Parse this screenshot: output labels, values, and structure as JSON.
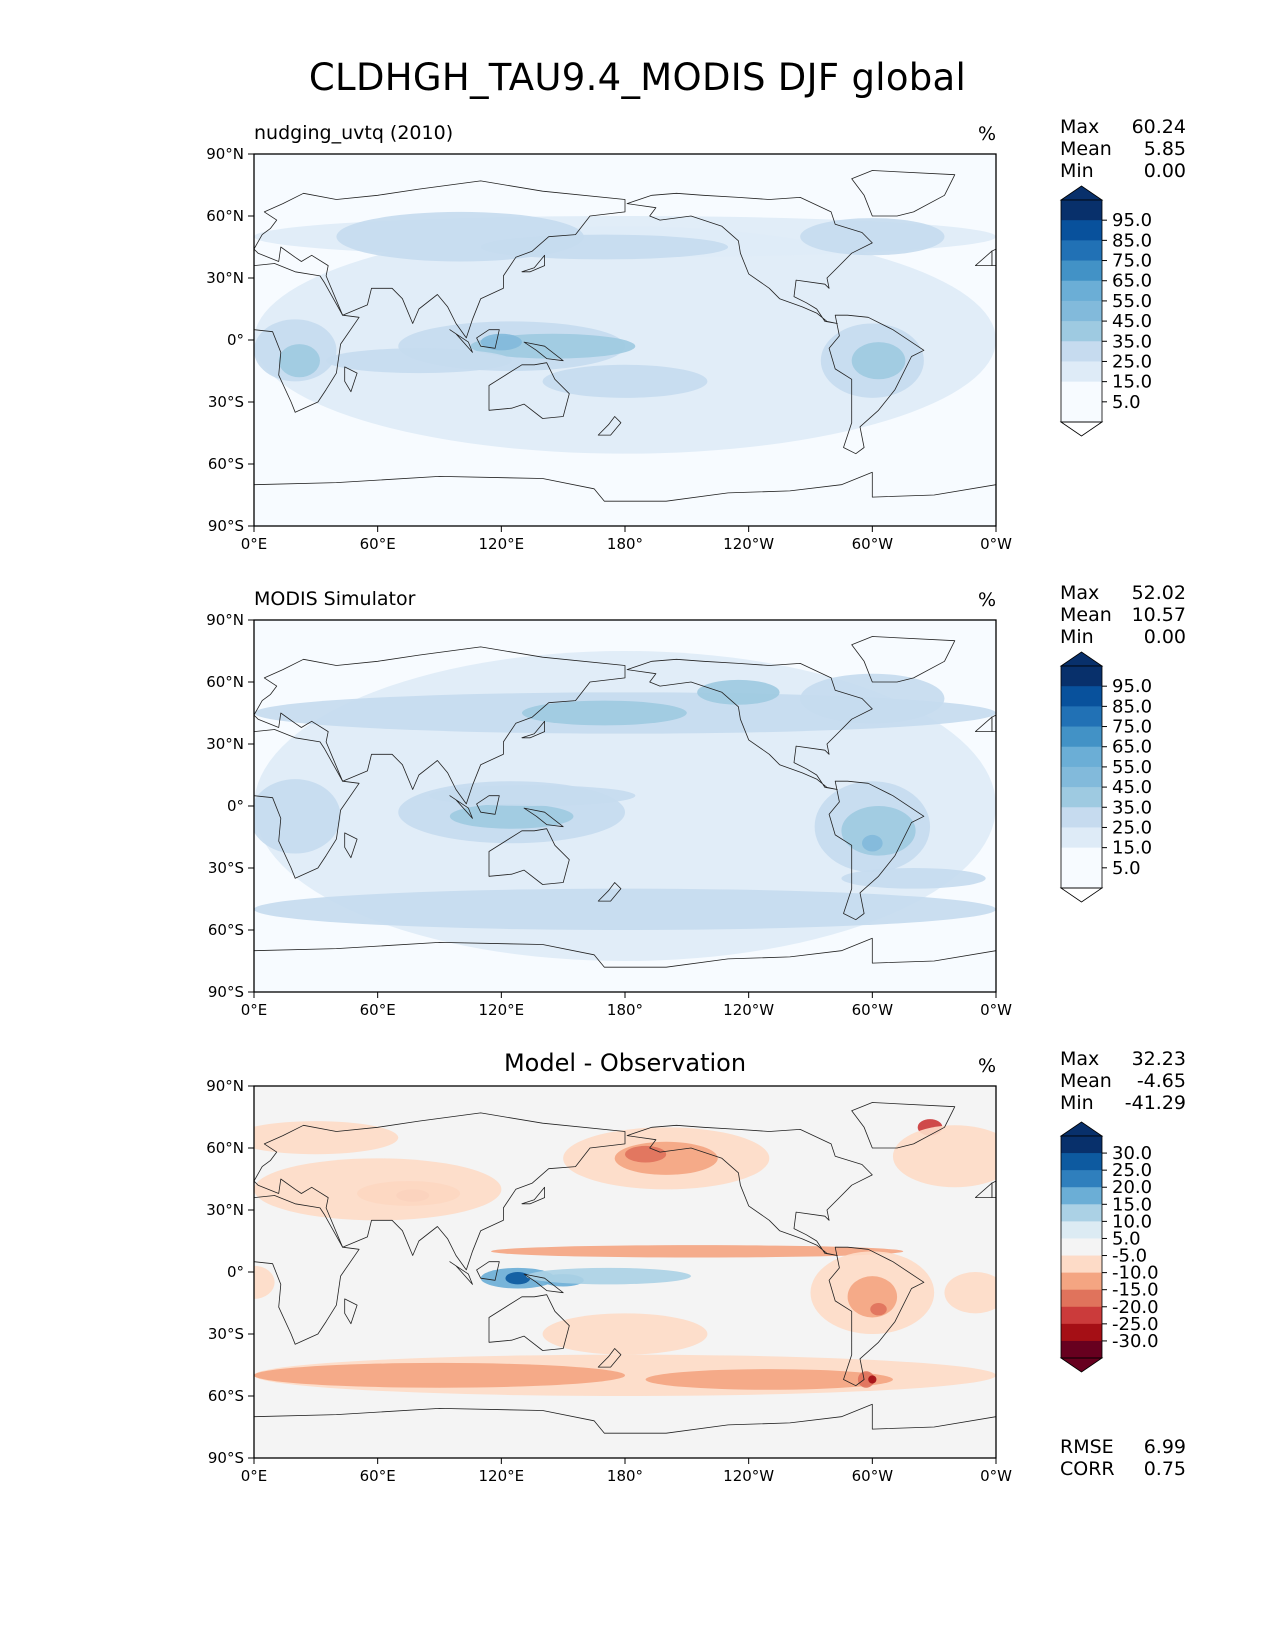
{
  "title": "CLDHGH_TAU9.4_MODIS DJF global",
  "colors": {
    "blues": [
      "#f7fbff",
      "#deebf7",
      "#c6dbef",
      "#9ecae1",
      "#82badb",
      "#6baed6",
      "#4292c6",
      "#2171b5",
      "#08519c",
      "#08306b"
    ],
    "diverging": [
      "#67001f",
      "#a50f15",
      "#cb3b3b",
      "#e0735c",
      "#f4a582",
      "#fddbc7",
      "#f4f4f4",
      "#dcebf3",
      "#abd1e5",
      "#6baed6",
      "#2f7fbd",
      "#0d5aa0",
      "#08306b"
    ],
    "land_outline": "#222222"
  },
  "axes": {
    "lat_ticks": [
      "90°N",
      "60°N",
      "30°N",
      "0°",
      "30°S",
      "60°S",
      "90°S"
    ],
    "lon_ticks": [
      "0°E",
      "60°E",
      "120°E",
      "180°",
      "120°W",
      "60°W",
      "0°W"
    ]
  },
  "chart_data": [
    {
      "type": "heatmap",
      "id": "test",
      "title": "nudging_uvtq (2010)",
      "units": "%",
      "stats": [
        {
          "label": "Max",
          "value": "60.24"
        },
        {
          "label": "Mean",
          "value": "5.85"
        },
        {
          "label": "Min",
          "value": "0.00"
        }
      ],
      "colorbar": {
        "levels": [
          "95.0",
          "85.0",
          "75.0",
          "65.0",
          "55.0",
          "45.0",
          "35.0",
          "25.0",
          "15.0",
          "5.0"
        ],
        "extend": "both"
      },
      "xlim": [
        0,
        360
      ],
      "ylim": [
        -90,
        90
      ]
    },
    {
      "type": "heatmap",
      "id": "reference",
      "title": "MODIS Simulator",
      "units": "%",
      "stats": [
        {
          "label": "Max",
          "value": "52.02"
        },
        {
          "label": "Mean",
          "value": "10.57"
        },
        {
          "label": "Min",
          "value": "0.00"
        }
      ],
      "colorbar": {
        "levels": [
          "95.0",
          "85.0",
          "75.0",
          "65.0",
          "55.0",
          "45.0",
          "35.0",
          "25.0",
          "15.0",
          "5.0"
        ],
        "extend": "both"
      },
      "xlim": [
        0,
        360
      ],
      "ylim": [
        -90,
        90
      ]
    },
    {
      "type": "heatmap",
      "id": "diff",
      "title": "Model - Observation",
      "units": "%",
      "stats": [
        {
          "label": "Max",
          "value": "32.23"
        },
        {
          "label": "Mean",
          "value": "-4.65"
        },
        {
          "label": "Min",
          "value": "-41.29"
        }
      ],
      "colorbar": {
        "levels": [
          "30.0",
          "25.0",
          "20.0",
          "15.0",
          "10.0",
          "5.0",
          "-5.0",
          "-10.0",
          "-15.0",
          "-20.0",
          "-25.0",
          "-30.0"
        ],
        "extend": "both"
      },
      "metrics": [
        {
          "label": "RMSE",
          "value": "6.99"
        },
        {
          "label": "CORR",
          "value": "0.75"
        }
      ],
      "xlim": [
        0,
        360
      ],
      "ylim": [
        -90,
        90
      ]
    }
  ]
}
